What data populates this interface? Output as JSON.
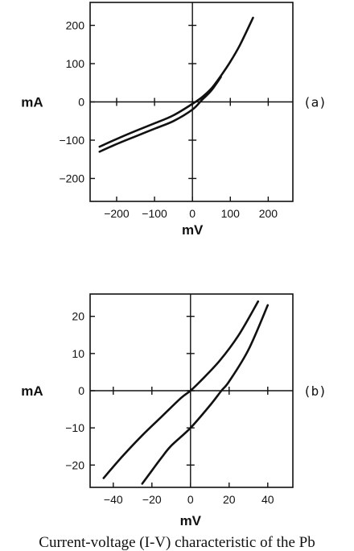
{
  "caption": "Current-voltage (I-V) characteristic of the Pb",
  "chart_data": [
    {
      "type": "line",
      "panel_label": "(a)",
      "xlabel": "mV",
      "ylabel": "mA",
      "xlim": [
        -270,
        265
      ],
      "ylim": [
        -260,
        260
      ],
      "xticks": [
        -200,
        -100,
        0,
        100,
        200
      ],
      "yticks": [
        -200,
        -100,
        0,
        100,
        200
      ],
      "grid": false,
      "series": [
        {
          "x": [
            -245,
            -200,
            -150,
            -100,
            -50,
            0,
            25,
            50,
            75,
            100,
            125,
            160
          ],
          "y": [
            -117,
            -97,
            -76,
            -56,
            -35,
            -5,
            12,
            35,
            68,
            105,
            148,
            220
          ]
        },
        {
          "x": [
            -245,
            -200,
            -150,
            -100,
            -50,
            0,
            25,
            50,
            75
          ],
          "y": [
            -130,
            -110,
            -90,
            -70,
            -50,
            -20,
            5,
            30,
            65
          ]
        }
      ]
    },
    {
      "type": "line",
      "panel_label": "(b)",
      "xlabel": "mV",
      "ylabel": "mA",
      "xlim": [
        -52,
        53
      ],
      "ylim": [
        -26,
        26
      ],
      "xticks": [
        -40,
        -20,
        0,
        20,
        40
      ],
      "yticks": [
        -20,
        -10,
        0,
        10,
        20
      ],
      "grid": false,
      "series": [
        {
          "x": [
            -45,
            -35,
            -25,
            -15,
            -5,
            0,
            5,
            15,
            25,
            35
          ],
          "y": [
            -23.5,
            -17.5,
            -12,
            -7,
            -2,
            0,
            2.5,
            8,
            15,
            24
          ]
        },
        {
          "x": [
            -25,
            -20,
            -15,
            -10,
            0,
            10,
            16,
            20,
            30,
            40
          ],
          "y": [
            -25,
            -21.5,
            -18,
            -14.8,
            -10,
            -4,
            0,
            2.5,
            11,
            23
          ]
        }
      ]
    }
  ]
}
